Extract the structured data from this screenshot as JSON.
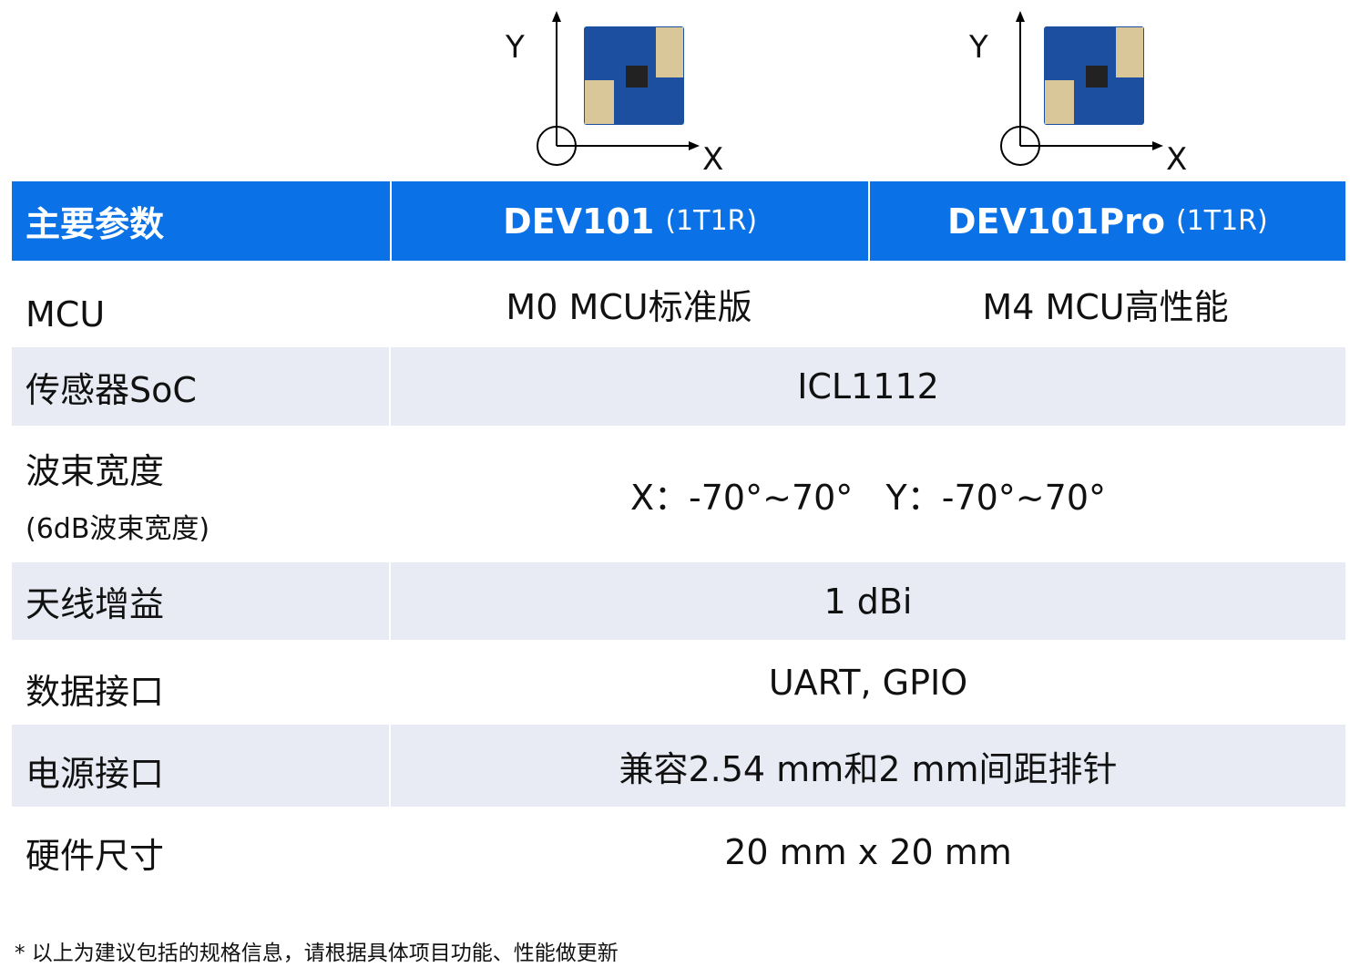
{
  "diagrams": [
    {
      "axis_y": "Y",
      "axis_x": "X"
    },
    {
      "axis_y": "Y",
      "axis_x": "X"
    }
  ],
  "colors": {
    "header_bg": "#0a72e6",
    "alt_row_bg": "#e8ebf4",
    "board_blue": "#1c4fa0",
    "board_gold": "#d9c79a"
  },
  "header": {
    "param": "主要参数",
    "dev1": "DEV101",
    "dev1_sub": "(1T1R)",
    "dev2": "DEV101Pro",
    "dev2_sub": "(1T1R)"
  },
  "rows": [
    {
      "label": "MCU",
      "dev1": "M0 MCU标准版",
      "dev2": "M4 MCU高性能"
    },
    {
      "label": "传感器SoC",
      "value": "ICL1112"
    },
    {
      "label": "波束宽度",
      "sublabel": "(6dB波束宽度)",
      "value": "X：-70°~70°   Y：-70°~70°"
    },
    {
      "label": "天线增益",
      "value": "1 dBi"
    },
    {
      "label": "数据接口",
      "value": "UART, GPIO"
    },
    {
      "label": "电源接口",
      "value": "兼容2.54 mm和2 mm间距排针"
    },
    {
      "label": "硬件尺寸",
      "value": "20 mm x 20 mm"
    }
  ],
  "footnote": "* 以上为建议包括的规格信息，请根据具体项目功能、性能做更新"
}
